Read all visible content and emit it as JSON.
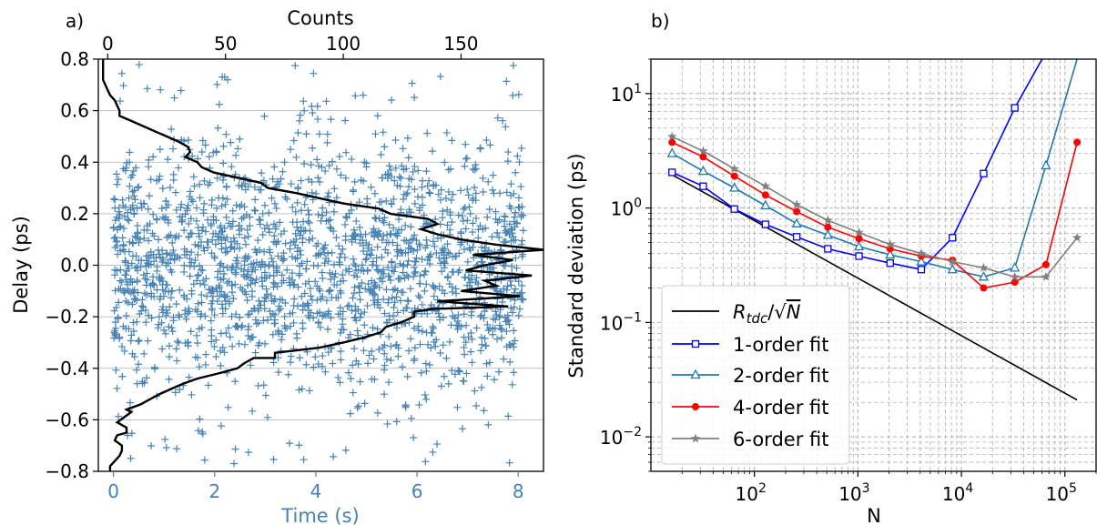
{
  "chart_data": [
    {
      "panel_label": "a)",
      "type": "scatter",
      "xlabel": "Time (s)",
      "ylabel": "Delay (ps)",
      "top_xlabel": "Counts",
      "xlim": [
        -0.3,
        8.5
      ],
      "ylim": [
        -0.8,
        0.8
      ],
      "top_xlim": [
        -4,
        185
      ],
      "x_ticks": [
        "0",
        "2",
        "4",
        "6",
        "8"
      ],
      "x_tick_values": [
        0,
        2,
        4,
        6,
        8
      ],
      "y_ticks": [
        "−0.8",
        "−0.6",
        "−0.4",
        "−0.2",
        "0.0",
        "0.2",
        "0.4",
        "0.6",
        "0.8"
      ],
      "y_tick_values": [
        -0.8,
        -0.6,
        -0.4,
        -0.2,
        0.0,
        0.2,
        0.4,
        0.6,
        0.8
      ],
      "top_ticks": [
        "0",
        "50",
        "100",
        "150"
      ],
      "top_tick_values": [
        0,
        50,
        100,
        150
      ],
      "grid": "horizontal",
      "scatter_marker": "+",
      "scatter_color": "#4682b4",
      "xlabel_color": "#4682b4",
      "histogram_color": "#000000",
      "scatter_series": {
        "n_points": 2000,
        "x_range": [
          0,
          8.1
        ],
        "y_distribution": "approximately uniform within ±0.5 ps with sparse tails to ±0.78 ps"
      },
      "histogram": {
        "name": "counts vs delay",
        "points": [
          [
            1,
            -0.8
          ],
          [
            1,
            -0.78
          ],
          [
            3,
            -0.76
          ],
          [
            5,
            -0.74
          ],
          [
            6,
            -0.72
          ],
          [
            6,
            -0.7
          ],
          [
            3,
            -0.68
          ],
          [
            4,
            -0.66
          ],
          [
            8,
            -0.65
          ],
          [
            8,
            -0.63
          ],
          [
            4,
            -0.61
          ],
          [
            7,
            -0.59
          ],
          [
            10,
            -0.57
          ],
          [
            8,
            -0.56
          ],
          [
            14,
            -0.54
          ],
          [
            18,
            -0.52
          ],
          [
            22,
            -0.5
          ],
          [
            27,
            -0.48
          ],
          [
            32,
            -0.46
          ],
          [
            38,
            -0.44
          ],
          [
            47,
            -0.42
          ],
          [
            55,
            -0.4
          ],
          [
            58,
            -0.38
          ],
          [
            62,
            -0.36
          ],
          [
            71,
            -0.36
          ],
          [
            71,
            -0.34
          ],
          [
            90,
            -0.32
          ],
          [
            100,
            -0.3
          ],
          [
            109,
            -0.28
          ],
          [
            116,
            -0.26
          ],
          [
            118,
            -0.24
          ],
          [
            125,
            -0.22
          ],
          [
            130,
            -0.2
          ],
          [
            130,
            -0.18
          ],
          [
            138,
            -0.17
          ],
          [
            170,
            -0.16
          ],
          [
            140,
            -0.14
          ],
          [
            158,
            -0.13
          ],
          [
            175,
            -0.12
          ],
          [
            150,
            -0.1
          ],
          [
            165,
            -0.08
          ],
          [
            160,
            -0.06
          ],
          [
            180,
            -0.04
          ],
          [
            152,
            -0.02
          ],
          [
            160,
            0.0
          ],
          [
            172,
            0.02
          ],
          [
            155,
            0.04
          ],
          [
            185,
            0.06
          ],
          [
            165,
            0.08
          ],
          [
            150,
            0.1
          ],
          [
            140,
            0.12
          ],
          [
            133,
            0.14
          ],
          [
            140,
            0.16
          ],
          [
            136,
            0.18
          ],
          [
            120,
            0.2
          ],
          [
            115,
            0.22
          ],
          [
            100,
            0.24
          ],
          [
            90,
            0.26
          ],
          [
            80,
            0.28
          ],
          [
            68,
            0.3
          ],
          [
            65,
            0.32
          ],
          [
            55,
            0.34
          ],
          [
            45,
            0.36
          ],
          [
            40,
            0.38
          ],
          [
            38,
            0.4
          ],
          [
            33,
            0.42
          ],
          [
            35,
            0.44
          ],
          [
            34,
            0.46
          ],
          [
            30,
            0.48
          ],
          [
            25,
            0.5
          ],
          [
            20,
            0.52
          ],
          [
            15,
            0.54
          ],
          [
            10,
            0.56
          ],
          [
            5,
            0.58
          ],
          [
            5,
            0.6
          ],
          [
            4,
            0.62
          ],
          [
            3,
            0.64
          ],
          [
            1,
            0.66
          ],
          [
            0,
            0.68
          ],
          [
            -2,
            0.72
          ],
          [
            -2,
            0.76
          ],
          [
            -2,
            0.8
          ]
        ]
      }
    },
    {
      "panel_label": "b)",
      "type": "line",
      "xlabel": "N",
      "ylabel": "Standard deviation (ps)",
      "xscale": "log",
      "yscale": "log",
      "xlim": [
        10,
        200000
      ],
      "ylim": [
        0.005,
        20
      ],
      "x_ticks": [
        {
          "value": 100,
          "base": "10",
          "exp": "2"
        },
        {
          "value": 1000,
          "base": "10",
          "exp": "3"
        },
        {
          "value": 10000,
          "base": "10",
          "exp": "4"
        },
        {
          "value": 100000,
          "base": "10",
          "exp": "5"
        }
      ],
      "y_ticks": [
        {
          "value": 0.01,
          "base": "10",
          "exp": "−2"
        },
        {
          "value": 0.1,
          "base": "10",
          "exp": "−1"
        },
        {
          "value": 1,
          "base": "10",
          "exp": "0"
        },
        {
          "value": 10,
          "base": "10",
          "exp": "1"
        }
      ],
      "grid": "both (major and minor, dashed)",
      "legend_position": "bottom-left",
      "x": [
        16,
        32,
        64,
        128,
        256,
        512,
        1024,
        2048,
        4096,
        8192,
        16384,
        32768,
        65536,
        131072
      ],
      "series": [
        {
          "name": "R_tdc/√N",
          "color": "#000000",
          "marker": "none",
          "x": [
            16,
            131072
          ],
          "values": [
            1.95,
            0.021
          ]
        },
        {
          "name": "1-order fit",
          "color": "#0000ff",
          "marker": "square",
          "values": [
            2.05,
            1.55,
            0.98,
            0.72,
            0.56,
            0.44,
            0.38,
            0.33,
            0.29,
            0.55,
            2.0,
            7.5,
            null,
            null
          ],
          "line_extends_to": [
            65536,
            23
          ]
        },
        {
          "name": "2-order fit",
          "color": "#1f77b4",
          "marker": "triangle",
          "values": [
            3.0,
            2.1,
            1.5,
            1.05,
            0.73,
            0.58,
            0.46,
            0.39,
            0.34,
            0.29,
            0.25,
            0.3,
            2.35,
            null
          ],
          "line_extends_to": [
            131072,
            20
          ]
        },
        {
          "name": "4-order fit",
          "color": "#ff0000",
          "marker": "circle",
          "values": [
            3.75,
            2.8,
            1.9,
            1.3,
            0.93,
            0.68,
            0.54,
            0.44,
            0.38,
            0.35,
            0.2,
            0.225,
            0.32,
            3.75
          ]
        },
        {
          "name": "6-order fit",
          "color": "#808080",
          "marker": "star",
          "values": [
            4.2,
            3.15,
            2.2,
            1.55,
            1.07,
            0.78,
            0.61,
            0.48,
            0.4,
            0.34,
            0.3,
            0.25,
            0.25,
            0.55
          ]
        }
      ],
      "legend_entries": [
        {
          "key": "rtdc",
          "label_html": "R<tspan font-style=\"italic\" baseline-shift=\"sub\" font-size=\"15\">tdc</tspan>/√N"
        },
        {
          "key": "o1",
          "label": "1-order fit"
        },
        {
          "key": "o2",
          "label": "2-order fit"
        },
        {
          "key": "o4",
          "label": "4-order fit"
        },
        {
          "key": "o6",
          "label": "6-order fit"
        }
      ]
    }
  ]
}
